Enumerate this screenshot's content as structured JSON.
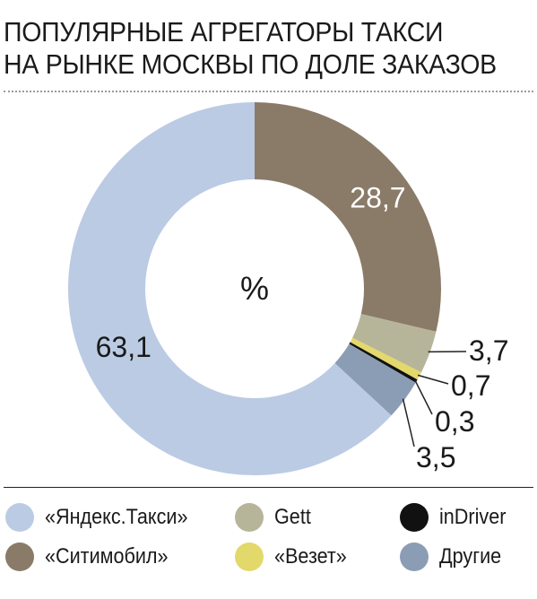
{
  "chart_data": {
    "type": "pie",
    "title": "Популярные агрегаторы такси на рынке Москвы по доле заказов",
    "title_lines": [
      "Популярные агрегаторы такси",
      "на рынке Москвы по доле заказов"
    ],
    "center_label": "%",
    "categories": [
      "«Ситимобил»",
      "Gett",
      "«Везет»",
      "inDriver",
      "Другие",
      "«Яндекс.Такси»"
    ],
    "values": [
      28.7,
      3.7,
      0.7,
      0.3,
      3.5,
      63.1
    ],
    "value_labels": [
      "28,7",
      "3,7",
      "0,7",
      "0,3",
      "3,5",
      "63,1"
    ],
    "colors": [
      "#8a7b68",
      "#b6b59a",
      "#e3d86a",
      "#111111",
      "#8b9db4",
      "#bccbe4"
    ],
    "legend_position": "bottom"
  },
  "legend": [
    {
      "label": "«Яндекс.Такси»",
      "color": "#bccbe4"
    },
    {
      "label": "Gett",
      "color": "#b6b59a"
    },
    {
      "label": "inDriver",
      "color": "#111111"
    },
    {
      "label": "«Ситимобил»",
      "color": "#8a7b68"
    },
    {
      "label": "«Везет»",
      "color": "#e3d86a"
    },
    {
      "label": "Другие",
      "color": "#8b9db4"
    }
  ]
}
